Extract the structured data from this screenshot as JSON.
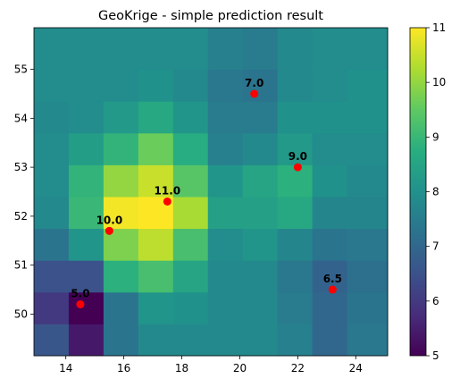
{
  "chart_data": {
    "type": "heatmap",
    "title": "GeoKrige - simple prediction result",
    "xlabel": "",
    "ylabel": "",
    "xlim": [
      12.9,
      25.1
    ],
    "ylim": [
      49.15,
      55.85
    ],
    "x_edges": [
      12.9,
      14.1,
      15.3,
      16.5,
      17.7,
      18.9,
      20.1,
      21.3,
      22.5,
      23.7,
      25.1
    ],
    "y_edges": [
      49.15,
      49.8,
      50.45,
      51.1,
      51.75,
      52.4,
      53.05,
      53.7,
      54.35,
      55.0,
      55.85
    ],
    "x_ticks": [
      14,
      16,
      18,
      20,
      22,
      24
    ],
    "y_ticks": [
      50,
      51,
      52,
      53,
      54,
      55
    ],
    "grid": false,
    "colormap": "viridis",
    "colorbar": {
      "min": 5,
      "max": 11,
      "ticks": [
        5,
        6,
        7,
        8,
        9,
        10,
        11
      ]
    },
    "values": [
      [
        6.6,
        5.4,
        7.3,
        7.8,
        7.8,
        7.8,
        7.8,
        7.6,
        7.0,
        7.4
      ],
      [
        6.0,
        5.0,
        7.3,
        8.1,
        8.0,
        7.8,
        7.8,
        7.5,
        7.0,
        7.3
      ],
      [
        6.5,
        6.5,
        8.8,
        9.2,
        8.5,
        7.8,
        7.8,
        7.4,
        6.9,
        7.2
      ],
      [
        7.3,
        8.1,
        9.8,
        10.4,
        9.2,
        7.9,
        8.1,
        7.7,
        7.3,
        7.4
      ],
      [
        7.8,
        9.0,
        10.9,
        11.0,
        10.2,
        8.4,
        8.4,
        8.6,
        7.7,
        7.7
      ],
      [
        7.9,
        8.9,
        10.0,
        10.5,
        9.4,
        8.1,
        8.5,
        8.8,
        8.0,
        7.8
      ],
      [
        7.9,
        8.3,
        8.9,
        9.6,
        8.7,
        7.6,
        7.8,
        8.2,
        7.9,
        7.9
      ],
      [
        7.8,
        7.9,
        8.2,
        8.6,
        8.1,
        7.5,
        7.5,
        8.0,
        8.0,
        8.0
      ],
      [
        7.9,
        7.9,
        7.9,
        8.0,
        7.8,
        7.4,
        7.3,
        7.8,
        7.9,
        8.0
      ],
      [
        7.9,
        7.9,
        7.9,
        7.9,
        7.9,
        7.6,
        7.5,
        7.8,
        7.9,
        7.9
      ]
    ],
    "points": [
      {
        "x": 14.5,
        "y": 50.2,
        "label": "5.0"
      },
      {
        "x": 15.5,
        "y": 51.7,
        "label": "10.0"
      },
      {
        "x": 17.5,
        "y": 52.3,
        "label": "11.0"
      },
      {
        "x": 20.5,
        "y": 54.5,
        "label": "7.0"
      },
      {
        "x": 22.0,
        "y": 53.0,
        "label": "9.0"
      },
      {
        "x": 23.2,
        "y": 50.5,
        "label": "6.5"
      }
    ],
    "point_color": "#ff0000"
  }
}
